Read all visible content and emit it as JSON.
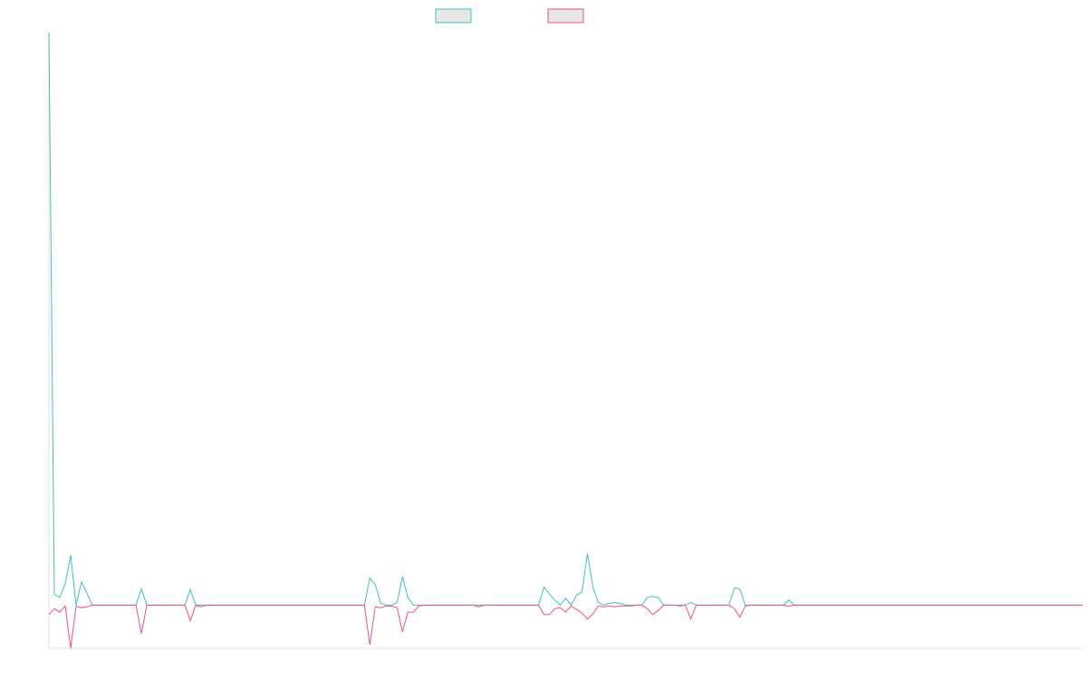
{
  "chart_data": {
    "type": "line",
    "title": "",
    "xlabel": "",
    "ylabel": "",
    "legend_position": "top-center",
    "grid": false,
    "ylim": [
      -100,
      1330
    ],
    "series": [
      {
        "color": "#3cbfc4",
        "values": [
          1330,
          25,
          18,
          50,
          116,
          0,
          54,
          28,
          0,
          0,
          0,
          0,
          0,
          0,
          0,
          0,
          0,
          38,
          0,
          0,
          0,
          0,
          0,
          0,
          0,
          0,
          36,
          0,
          0,
          0,
          0,
          0,
          0,
          0,
          0,
          0,
          0,
          0,
          0,
          0,
          0,
          0,
          0,
          0,
          0,
          0,
          0,
          0,
          0,
          0,
          0,
          0,
          0,
          0,
          0,
          0,
          0,
          0,
          0,
          63,
          48,
          4,
          0,
          0,
          6,
          66,
          18,
          0,
          0,
          0,
          0,
          0,
          0,
          0,
          0,
          0,
          0,
          0,
          0,
          0,
          0,
          0,
          0,
          0,
          0,
          0,
          0,
          0,
          0,
          0,
          0,
          42,
          26,
          12,
          0,
          16,
          0,
          24,
          30,
          120,
          42,
          6,
          0,
          4,
          6,
          4,
          0,
          0,
          0,
          0,
          18,
          20,
          18,
          0,
          0,
          0,
          0,
          0,
          6,
          0,
          0,
          0,
          0,
          0,
          0,
          0,
          40,
          38,
          0,
          0,
          0,
          0,
          0,
          0,
          0,
          0,
          12,
          0,
          0
        ]
      },
      {
        "color": "#f0527a",
        "values": [
          -22,
          -8,
          -16,
          -2,
          -100,
          -2,
          -6,
          -4,
          0,
          0,
          0,
          0,
          0,
          0,
          0,
          0,
          0,
          -66,
          0,
          0,
          0,
          0,
          0,
          0,
          0,
          0,
          -36,
          0,
          -4,
          0,
          0,
          0,
          0,
          0,
          0,
          0,
          0,
          0,
          0,
          0,
          0,
          0,
          0,
          0,
          0,
          0,
          0,
          0,
          0,
          0,
          0,
          0,
          0,
          0,
          0,
          0,
          0,
          0,
          0,
          -92,
          -4,
          -6,
          -2,
          -2,
          -6,
          -62,
          -16,
          -16,
          -2,
          0,
          0,
          0,
          0,
          0,
          0,
          0,
          0,
          0,
          0,
          -4,
          0,
          0,
          0,
          0,
          0,
          0,
          0,
          0,
          0,
          0,
          0,
          -22,
          -22,
          -8,
          -6,
          -16,
          -2,
          -10,
          -18,
          -32,
          -20,
          -2,
          -4,
          -2,
          -4,
          -2,
          -2,
          -2,
          0,
          0,
          -8,
          -22,
          -12,
          0,
          0,
          0,
          -2,
          0,
          -32,
          0,
          0,
          0,
          0,
          0,
          0,
          0,
          -8,
          -28,
          -2,
          0,
          0,
          0,
          0,
          0,
          0,
          0,
          -2,
          0,
          0
        ]
      }
    ]
  }
}
